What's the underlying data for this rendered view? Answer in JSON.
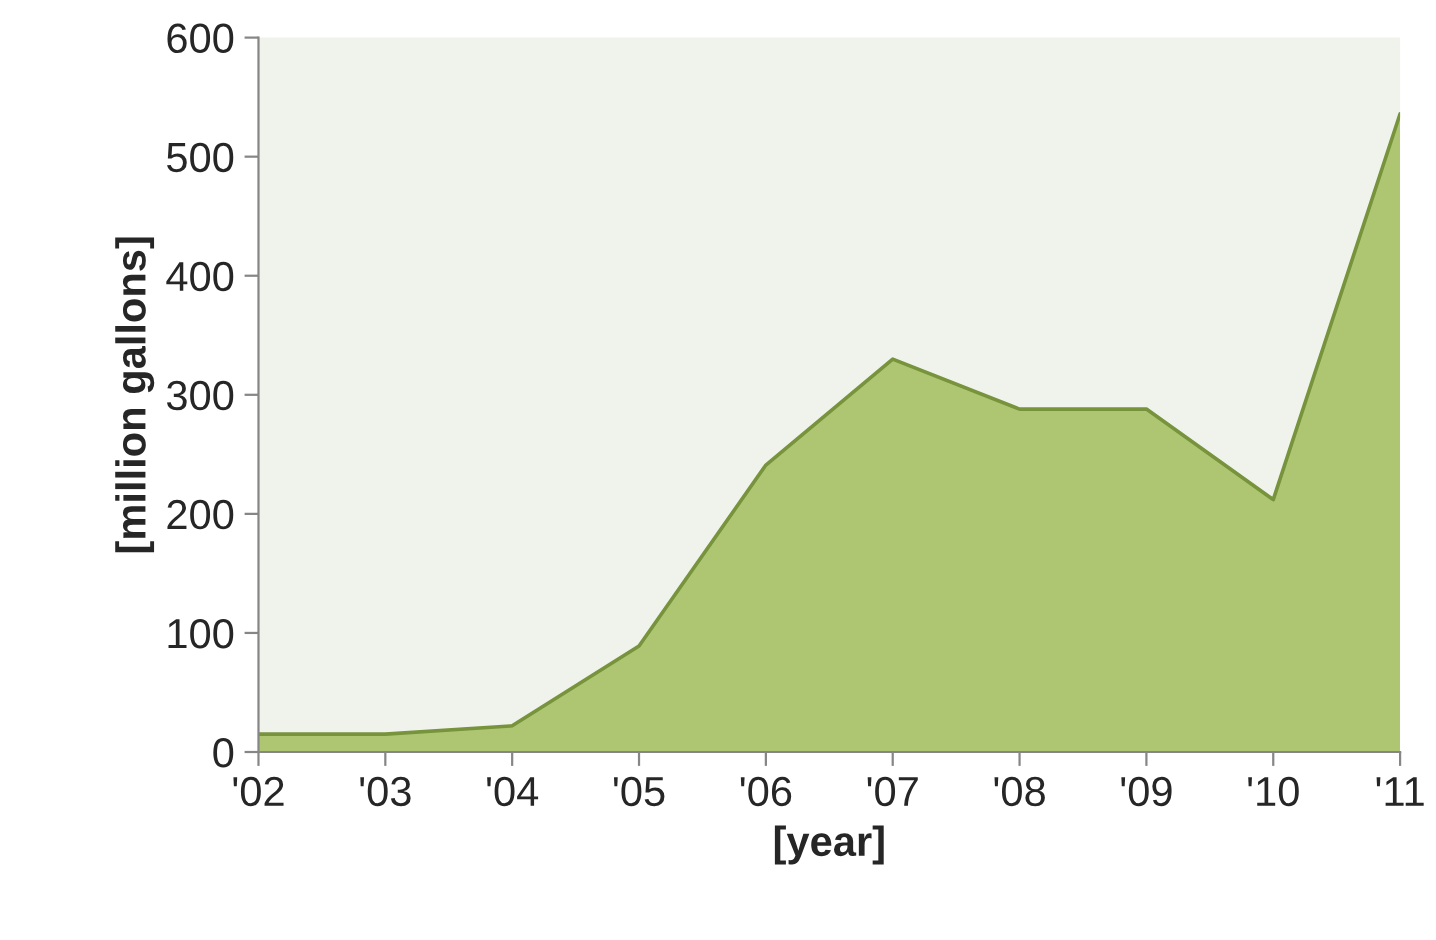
{
  "chart_data": {
    "type": "area",
    "xlabel": "[year]",
    "ylabel": "[million gallons]",
    "categories": [
      "'02",
      "'03",
      "'04",
      "'05",
      "'06",
      "'07",
      "'08",
      "'09",
      "'10",
      "'11"
    ],
    "series": [
      {
        "color": "#aec672",
        "values": [
          15,
          15,
          22,
          89,
          241,
          330,
          288,
          288,
          212,
          536
        ]
      }
    ],
    "ylim": [
      0,
      600
    ],
    "yticks": [
      0,
      100,
      200,
      300,
      400,
      500,
      600
    ],
    "grid": false,
    "legend": false
  }
}
